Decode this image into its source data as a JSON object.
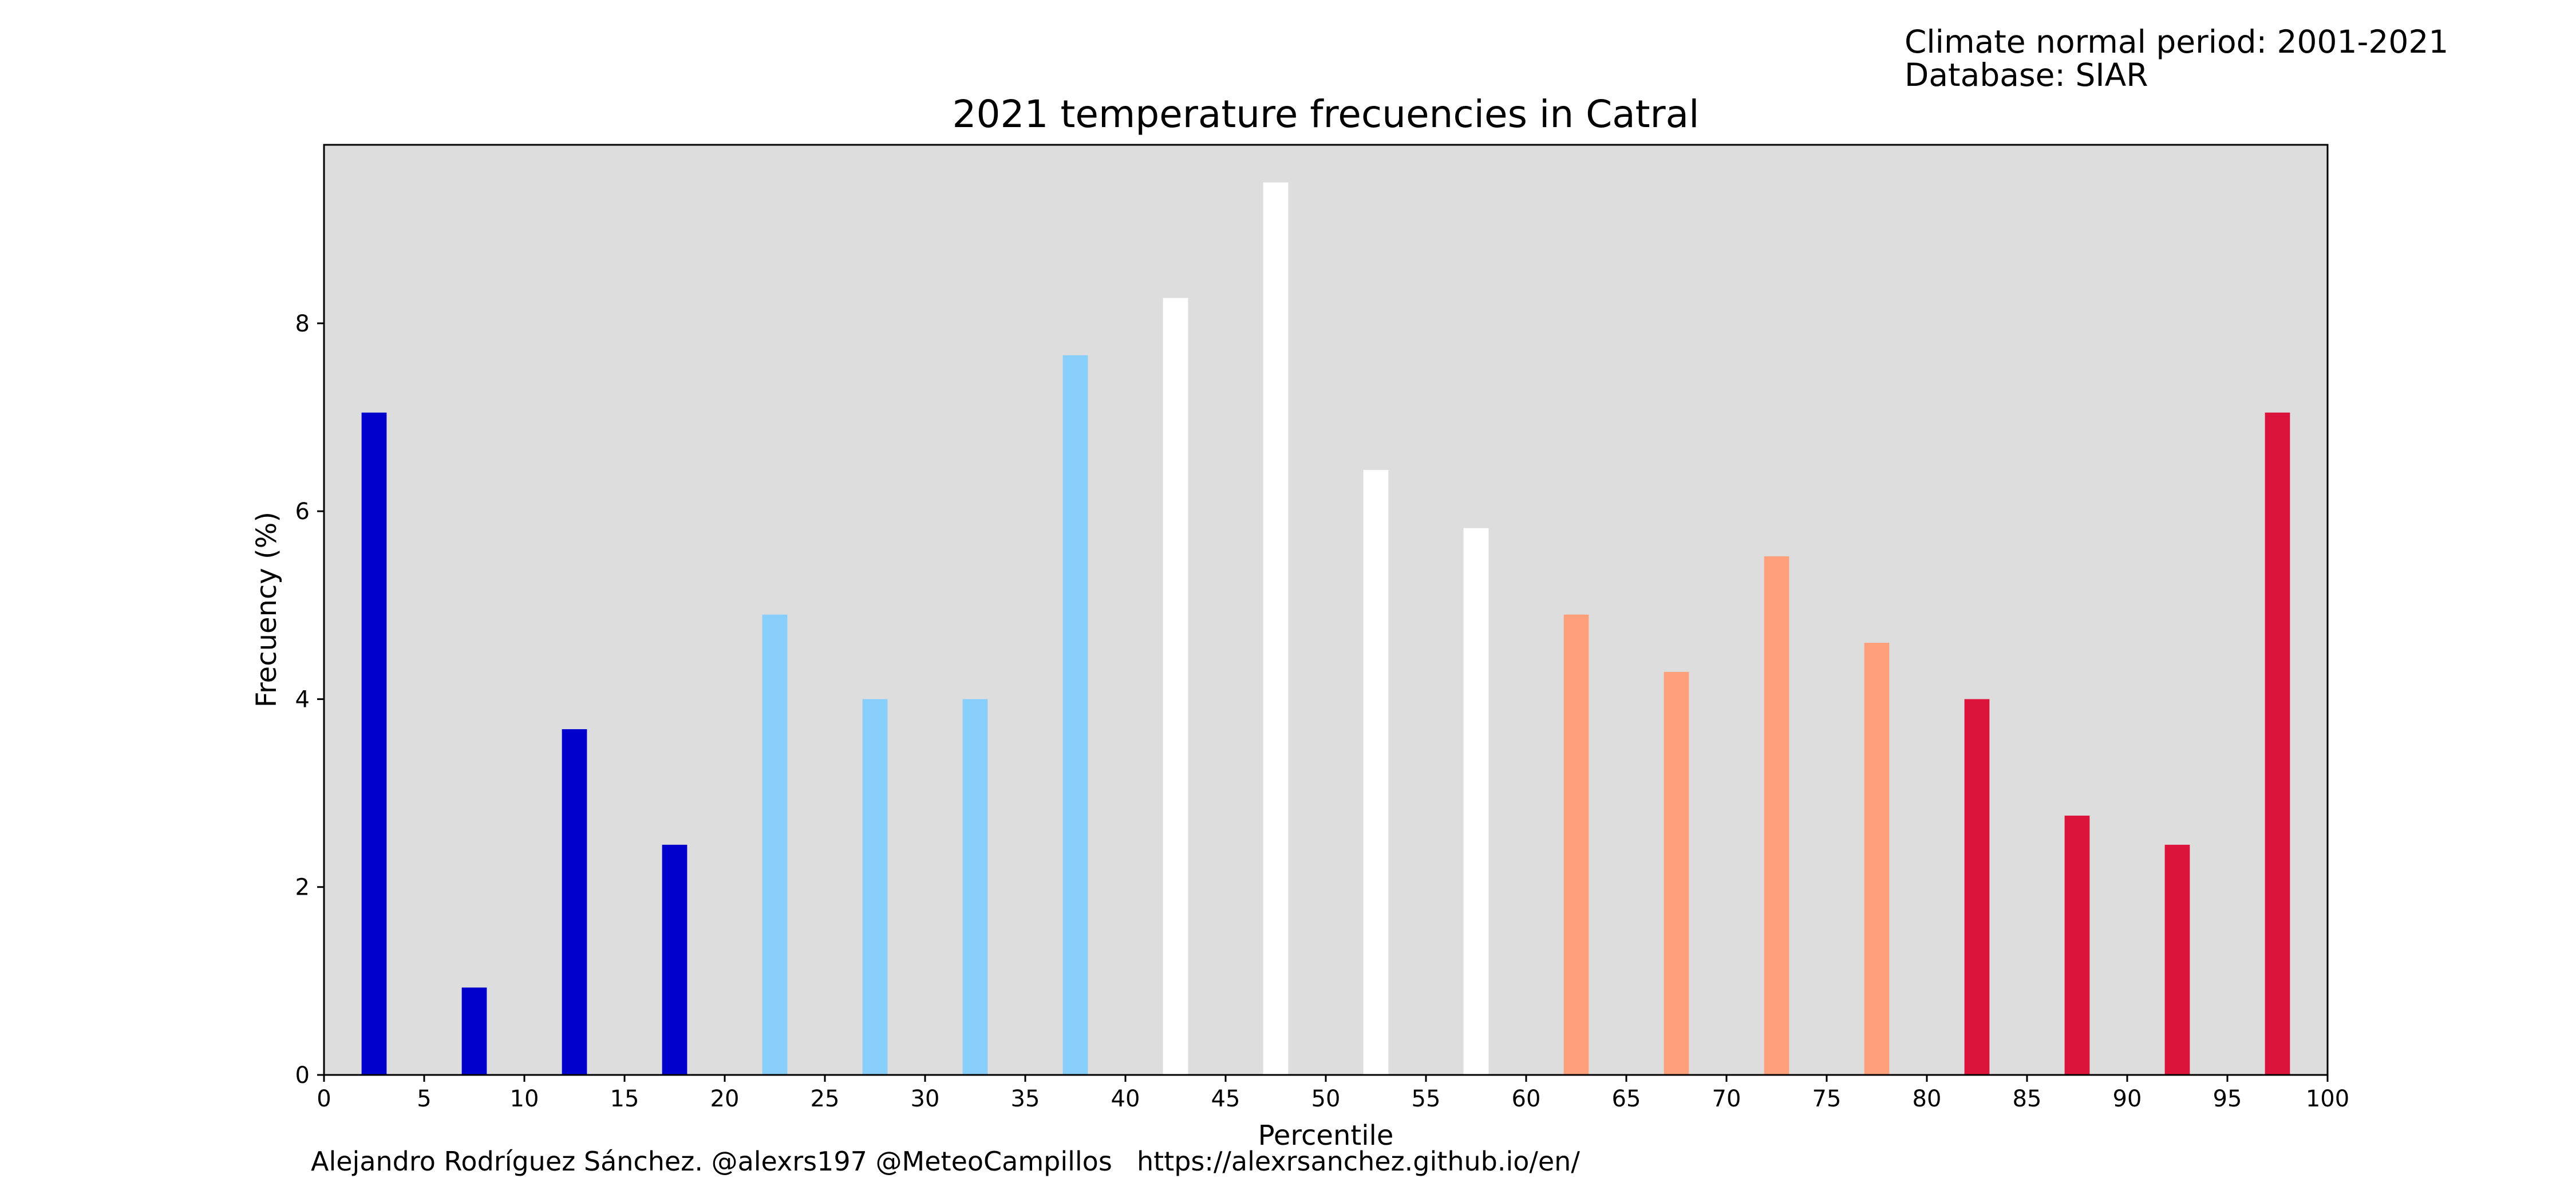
{
  "header": {
    "climate_normal_line": "Climate normal period: 2001-2021",
    "database_line": "Database: SIAR"
  },
  "footer": {
    "credit": "Alejandro Rodríguez Sánchez. @alexrs197 @MeteoCampillos",
    "url": "https://alexrsanchez.github.io/en/"
  },
  "chart_data": {
    "type": "bar",
    "title": "2021 temperature frecuencies in Catral",
    "xlabel": "Percentile",
    "ylabel": "Frecuency (%)",
    "xlim": [
      0,
      100
    ],
    "ylim": [
      0,
      9.9
    ],
    "xticks": [
      0,
      5,
      10,
      15,
      20,
      25,
      30,
      35,
      40,
      45,
      50,
      55,
      60,
      65,
      70,
      75,
      80,
      85,
      90,
      95,
      100
    ],
    "yticks": [
      0,
      2,
      4,
      6,
      8
    ],
    "bar_width": 1.25,
    "x": [
      2.5,
      7.5,
      12.5,
      17.5,
      22.5,
      27.5,
      32.5,
      37.5,
      42.5,
      47.5,
      52.5,
      57.5,
      62.5,
      67.5,
      72.5,
      77.5,
      82.5,
      87.5,
      92.5,
      97.5
    ],
    "values": [
      7.05,
      0.93,
      3.68,
      2.45,
      4.9,
      4.0,
      4.0,
      7.66,
      8.27,
      9.5,
      6.44,
      5.82,
      4.9,
      4.29,
      5.52,
      4.6,
      4.0,
      2.76,
      2.45,
      7.05
    ],
    "colors": [
      "#0000cd",
      "#0000cd",
      "#0000cd",
      "#0000cd",
      "#87cefa",
      "#87cefa",
      "#87cefa",
      "#87cefa",
      "#ffffff",
      "#ffffff",
      "#ffffff",
      "#ffffff",
      "#ffa07a",
      "#ffa07a",
      "#ffa07a",
      "#ffa07a",
      "#dc143c",
      "#dc143c",
      "#dc143c",
      "#dc143c"
    ],
    "plot_background": "#dddddd",
    "grid": false,
    "legend": "none"
  }
}
